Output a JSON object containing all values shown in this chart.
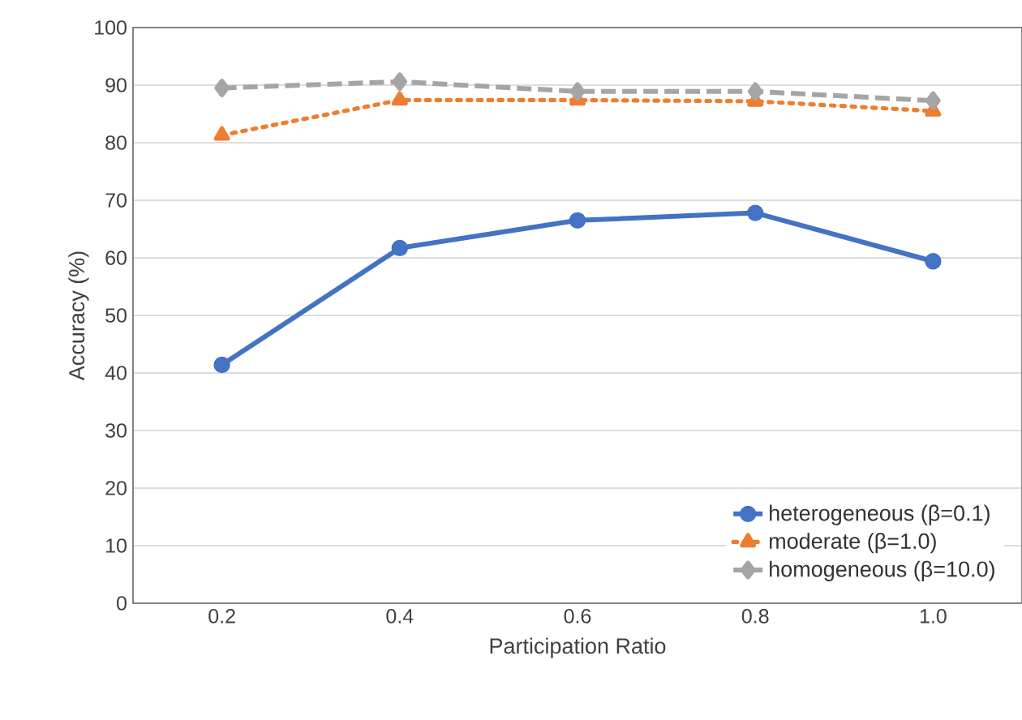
{
  "chart_data": {
    "type": "line",
    "xlabel": "Participation Ratio",
    "ylabel": "Accuracy (%)",
    "categories": [
      "0.2",
      "0.4",
      "0.6",
      "0.8",
      "1.0"
    ],
    "series": [
      {
        "name": "heterogeneous (β=0.1)",
        "color": "#4472c4",
        "marker": "circle",
        "line_style": "solid",
        "values": [
          41.4,
          61.7,
          66.5,
          67.8,
          59.4
        ]
      },
      {
        "name": "moderate (β=1.0)",
        "color": "#ed7d31",
        "marker": "triangle",
        "line_style": "dotted",
        "values": [
          81.3,
          87.4,
          87.4,
          87.2,
          85.5
        ]
      },
      {
        "name": "homogeneous (β=10.0)",
        "color": "#a5a5a5",
        "marker": "diamond",
        "line_style": "dashed",
        "values": [
          89.5,
          90.6,
          88.9,
          88.9,
          87.3
        ]
      }
    ],
    "ylim": [
      0,
      100
    ],
    "yticks": [
      0,
      10,
      20,
      30,
      40,
      50,
      60,
      70,
      80,
      90,
      100
    ],
    "grid": "y",
    "legend": "bottom right"
  }
}
